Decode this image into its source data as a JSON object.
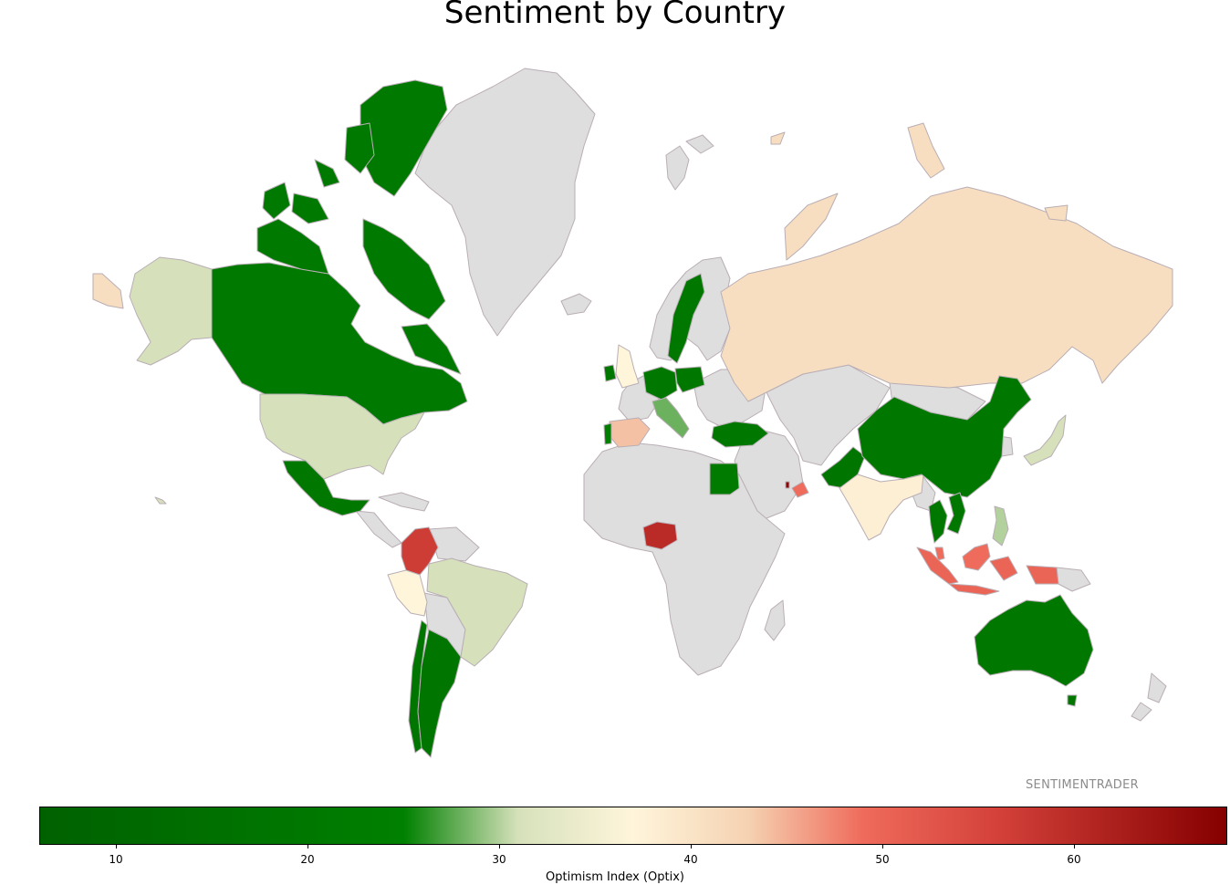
{
  "title": "Sentiment by Country",
  "watermark": "SENTIMENTRADER",
  "colorbar": {
    "label": "Optimism Index (Optix)",
    "min": 6,
    "max": 68,
    "ticks": [
      10,
      20,
      30,
      40,
      50,
      60
    ],
    "stops": [
      {
        "value": 6,
        "color": "#006100"
      },
      {
        "value": 25,
        "color": "#008000"
      },
      {
        "value": 31,
        "color": "#d6e1bb"
      },
      {
        "value": 37,
        "color": "#fff5db"
      },
      {
        "value": 43,
        "color": "#f5d2b2"
      },
      {
        "value": 49,
        "color": "#ef6b5b"
      },
      {
        "value": 56,
        "color": "#d4413a"
      },
      {
        "value": 68,
        "color": "#850000"
      }
    ]
  },
  "colors": {
    "no_data": "#dedede",
    "border": "#b9aeb5"
  },
  "map_data": {
    "type": "choropleth",
    "metric": "Optimism Index (Optix)",
    "countries": [
      {
        "name": "Canada",
        "value": 21
      },
      {
        "name": "United States",
        "value": 31
      },
      {
        "name": "Mexico",
        "value": 20
      },
      {
        "name": "Colombia",
        "value": 57
      },
      {
        "name": "Peru",
        "value": 37
      },
      {
        "name": "Brazil",
        "value": 31
      },
      {
        "name": "Chile",
        "value": 19
      },
      {
        "name": "Argentina",
        "value": 19
      },
      {
        "name": "United Kingdom",
        "value": 37
      },
      {
        "name": "Ireland",
        "value": 20
      },
      {
        "name": "Spain",
        "value": 44
      },
      {
        "name": "Portugal",
        "value": 24
      },
      {
        "name": "Germany",
        "value": 20
      },
      {
        "name": "Poland",
        "value": 20
      },
      {
        "name": "Italy",
        "value": 28
      },
      {
        "name": "Sweden",
        "value": 20
      },
      {
        "name": "Russia",
        "value": 41
      },
      {
        "name": "Turkey",
        "value": 20
      },
      {
        "name": "Egypt",
        "value": 22
      },
      {
        "name": "Nigeria",
        "value": 60
      },
      {
        "name": "United Arab Emirates",
        "value": 49
      },
      {
        "name": "Qatar",
        "value": 67
      },
      {
        "name": "Pakistan",
        "value": 18
      },
      {
        "name": "India",
        "value": 38
      },
      {
        "name": "China",
        "value": 20
      },
      {
        "name": "Japan",
        "value": 31
      },
      {
        "name": "Thailand",
        "value": 20
      },
      {
        "name": "Vietnam",
        "value": 20
      },
      {
        "name": "Philippines",
        "value": 30
      },
      {
        "name": "Malaysia",
        "value": 49
      },
      {
        "name": "Indonesia",
        "value": 50
      },
      {
        "name": "Australia",
        "value": 20
      }
    ]
  }
}
